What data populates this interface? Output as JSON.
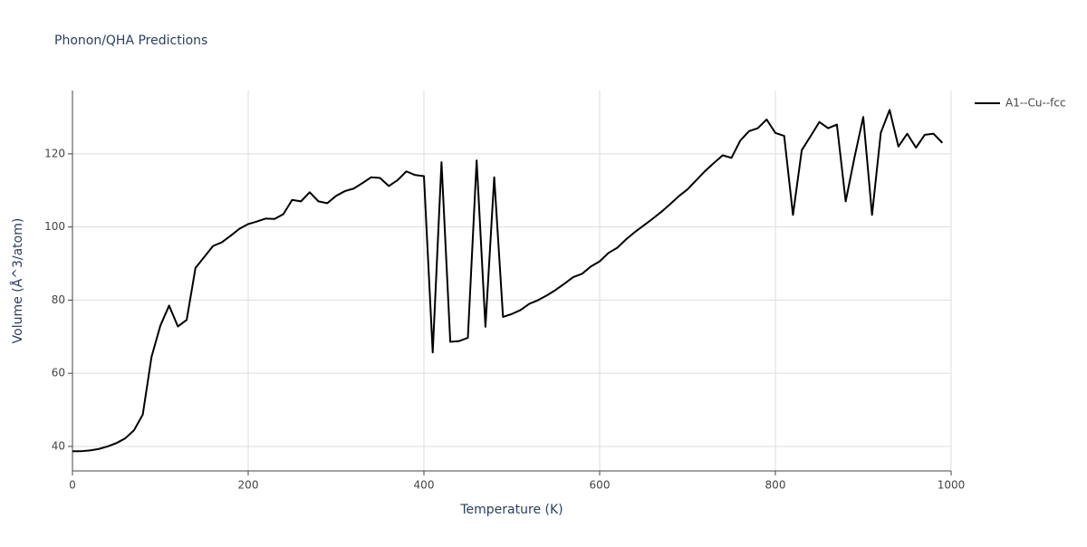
{
  "chart_data": {
    "type": "line",
    "title": "Phonon/QHA Predictions",
    "x_label": "Temperature (K)",
    "y_label": "Volume (Å^3/atom)",
    "x": [
      0,
      10,
      20,
      30,
      40,
      50,
      60,
      70,
      80,
      90,
      100,
      110,
      120,
      130,
      140,
      150,
      160,
      170,
      180,
      190,
      200,
      210,
      220,
      230,
      240,
      250,
      260,
      270,
      280,
      290,
      300,
      310,
      320,
      330,
      340,
      350,
      360,
      370,
      380,
      390,
      400,
      410,
      420,
      430,
      440,
      450,
      460,
      470,
      480,
      490,
      500,
      510,
      520,
      530,
      540,
      550,
      560,
      570,
      580,
      590,
      600,
      610,
      620,
      630,
      640,
      650,
      660,
      670,
      680,
      690,
      700,
      710,
      720,
      730,
      740,
      750,
      760,
      770,
      780,
      790,
      800,
      810,
      820,
      830,
      840,
      850,
      860,
      870,
      880,
      890,
      900,
      910,
      920,
      930,
      940,
      950,
      960,
      970,
      980,
      990
    ],
    "series": [
      {
        "name": "A1--Cu--fcc",
        "color": "#000000",
        "values": [
          38.7,
          38.7,
          38.9,
          39.3,
          40.0,
          40.9,
          42.2,
          44.4,
          48.7,
          64.5,
          73.0,
          78.5,
          72.8,
          74.6,
          88.8,
          91.8,
          94.8,
          95.8,
          97.6,
          99.5,
          100.8,
          101.5,
          102.3,
          102.2,
          103.5,
          107.4,
          107.0,
          109.5,
          107.0,
          106.5,
          108.5,
          109.8,
          110.5,
          112.0,
          113.6,
          113.4,
          111.2,
          112.8,
          115.2,
          114.2,
          113.9,
          65.7,
          117.7,
          68.6,
          68.8,
          69.7,
          118.2,
          72.7,
          113.6,
          75.4,
          76.2,
          77.3,
          79.0,
          80.0,
          81.3,
          82.8,
          84.5,
          86.3,
          87.2,
          89.2,
          90.6,
          92.9,
          94.3,
          96.6,
          98.6,
          100.4,
          102.2,
          104.1,
          106.2,
          108.4,
          110.3,
          112.8,
          115.3,
          117.5,
          119.6,
          118.9,
          123.6,
          126.2,
          127.0,
          129.4,
          125.7,
          124.9,
          103.3,
          121.0,
          124.8,
          128.7,
          127.0,
          128.0,
          107.0,
          119.0,
          130.1,
          103.3,
          125.8,
          132.0,
          122.0,
          125.5,
          121.7,
          125.2,
          125.5,
          123.0
        ]
      }
    ],
    "xlim": [
      0,
      1000
    ],
    "xticks": [
      0,
      200,
      400,
      600,
      800,
      1000
    ],
    "ylim": [
      33.3,
      137.3
    ],
    "yticks": [
      40,
      60,
      80,
      100,
      120
    ],
    "grid": true,
    "legend": "top-right"
  }
}
